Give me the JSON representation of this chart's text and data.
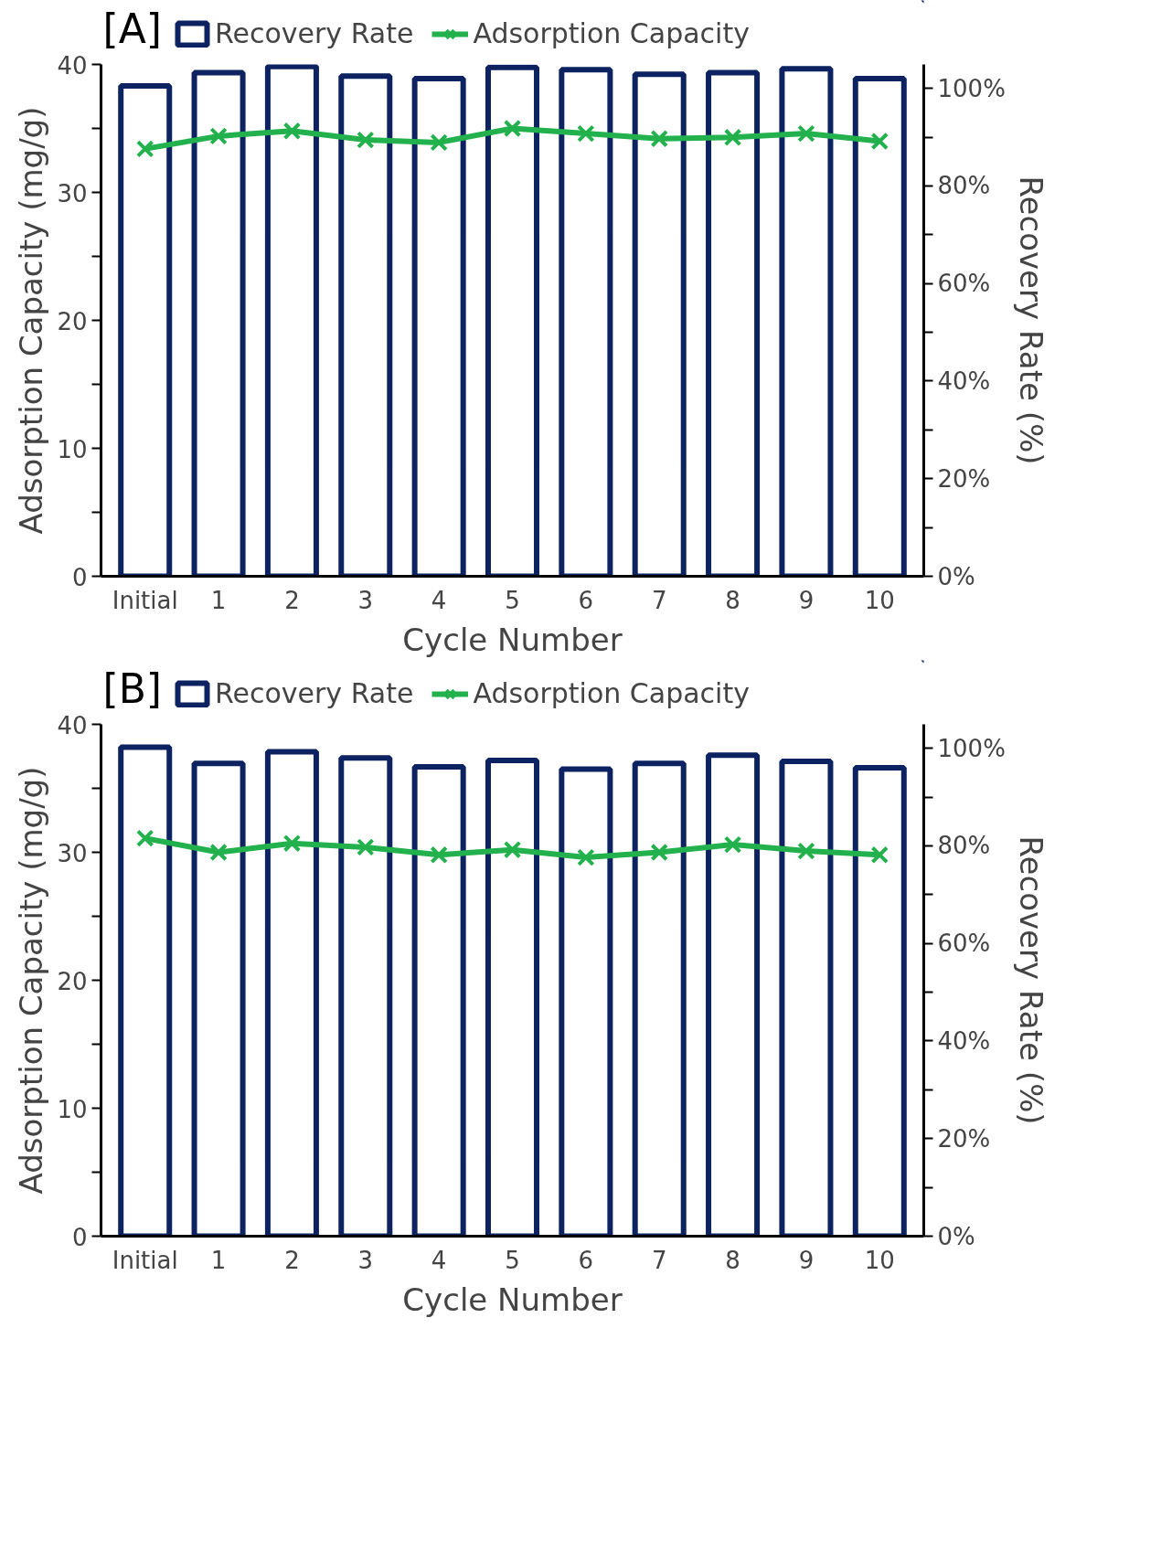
{
  "chart_data": [
    {
      "type": "bar",
      "title": "[A]",
      "categories": [
        "Initial",
        "1",
        "2",
        "3",
        "4",
        "5",
        "6",
        "7",
        "8",
        "9",
        "10"
      ],
      "xlabel": "Cycle Number",
      "ylabel": "Adsorption Capacity (mg/g)",
      "y2label": "Recovery Rate (%)",
      "series": [
        {
          "name": "Recovery Rate",
          "axis": "y2",
          "color": "#0d2260",
          "values": [
            100.5,
            103.2,
            104.5,
            102.5,
            102,
            104.3,
            103.8,
            102.9,
            103.2,
            104,
            102
          ]
        },
        {
          "name": "Adsorption Capacity",
          "type": "line",
          "color": "#22b14c",
          "marker": "cross",
          "values": [
            33.4,
            34.4,
            34.8,
            34.1,
            33.9,
            35.0,
            34.6,
            34.2,
            34.3,
            34.6,
            34.0
          ]
        }
      ],
      "ylim": [
        0,
        40
      ],
      "yticks": [
        0,
        {
          "value": 5,
          "label": null
        },
        10,
        {
          "value": 15,
          "label": null
        },
        20,
        {
          "value": 25,
          "label": null
        },
        30,
        {
          "value": 35,
          "label": null
        },
        40
      ],
      "y2lim": [
        0,
        104.9
      ],
      "y2ticks": [
        {
          "value": 0,
          "label": "0%"
        },
        {
          "value": 10,
          "label": null
        },
        {
          "value": 20,
          "label": "20%"
        },
        {
          "value": 30,
          "label": null
        },
        {
          "value": 40,
          "label": "40%"
        },
        {
          "value": 50,
          "label": null
        },
        {
          "value": 60,
          "label": "60%"
        },
        {
          "value": 70,
          "label": null
        },
        {
          "value": 80,
          "label": "80%"
        },
        {
          "value": 90,
          "label": null
        },
        {
          "value": 100,
          "label": "100%"
        }
      ],
      "grid": false,
      "legend": "top"
    },
    {
      "type": "bar",
      "title": "[B]",
      "categories": [
        "Initial",
        "1",
        "2",
        "3",
        "4",
        "5",
        "6",
        "7",
        "8",
        "9",
        "10"
      ],
      "xlabel": "Cycle Number",
      "ylabel": "Adsorption Capacity (mg/g)",
      "y2label": "Recovery Rate (%)",
      "series": [
        {
          "name": "Recovery Rate",
          "axis": "y2",
          "color": "#0d2260",
          "values": [
            100.2,
            96.9,
            99.3,
            98,
            96.2,
            97.5,
            95.7,
            96.9,
            98.6,
            97.3,
            96.0
          ]
        },
        {
          "name": "Adsorption Capacity",
          "type": "line",
          "color": "#22b14c",
          "marker": "cross",
          "values": [
            31.1,
            30.0,
            30.7,
            30.4,
            29.8,
            30.2,
            29.6,
            30.0,
            30.6,
            30.1,
            29.8
          ]
        }
      ],
      "ylim": [
        0,
        40
      ],
      "yticks": [
        0,
        {
          "value": 5,
          "label": null
        },
        10,
        {
          "value": 15,
          "label": null
        },
        20,
        {
          "value": 25,
          "label": null
        },
        30,
        {
          "value": 35,
          "label": null
        },
        40
      ],
      "y2lim": [
        0,
        104.9
      ],
      "y2ticks": [
        {
          "value": 0,
          "label": "0%"
        },
        {
          "value": 10,
          "label": null
        },
        {
          "value": 20,
          "label": "20%"
        },
        {
          "value": 30,
          "label": null
        },
        {
          "value": 40,
          "label": "40%"
        },
        {
          "value": 50,
          "label": null
        },
        {
          "value": 60,
          "label": "60%"
        },
        {
          "value": 70,
          "label": null
        },
        {
          "value": 80,
          "label": "80%"
        },
        {
          "value": 90,
          "label": null
        },
        {
          "value": 100,
          "label": "100%"
        }
      ],
      "grid": false,
      "legend": "top"
    }
  ]
}
